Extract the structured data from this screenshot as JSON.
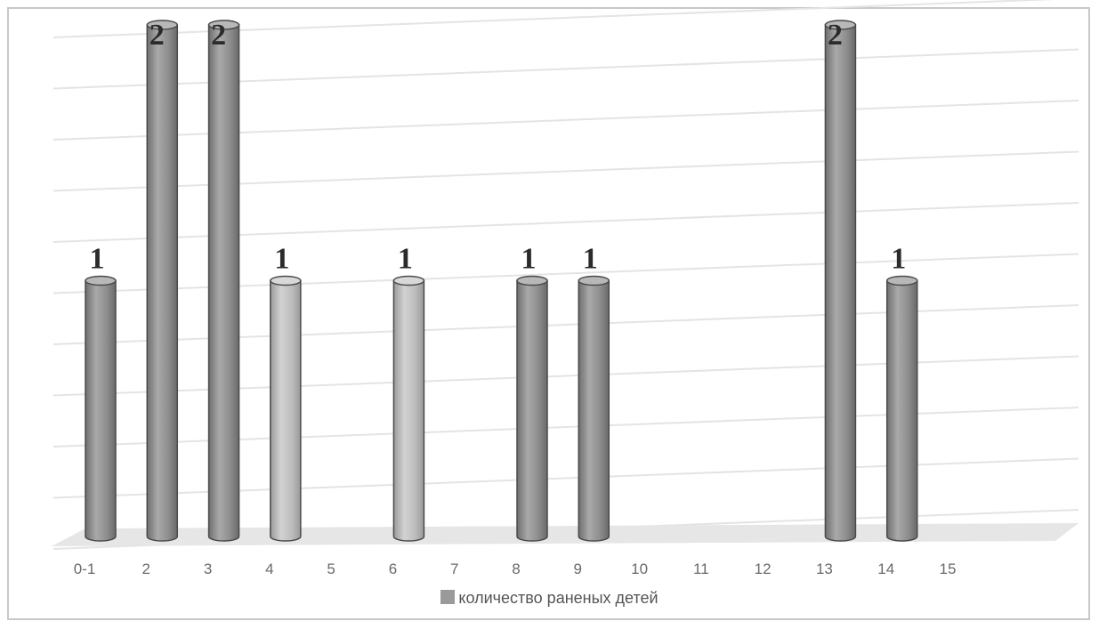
{
  "chart_data": {
    "type": "bar",
    "style": "3d-cylinder",
    "categories": [
      "0-1",
      "2",
      "3",
      "4",
      "5",
      "6",
      "7",
      "8",
      "9",
      "10",
      "11",
      "12",
      "13",
      "14",
      "15"
    ],
    "series": [
      {
        "name": "количество раненых детей",
        "values": [
          1,
          2,
          2,
          1,
          0,
          1,
          0,
          1,
          1,
          0,
          0,
          0,
          2,
          1,
          0
        ],
        "color": "#9a9a9a"
      }
    ],
    "data_labels": [
      "1",
      "2",
      "2",
      "1",
      "",
      "1",
      "",
      "1",
      "1",
      "",
      "",
      "",
      "2",
      "1",
      ""
    ],
    "ylim": [
      0,
      2
    ],
    "grid": true,
    "legend_position": "bottom"
  },
  "colors": {
    "bar": "#9a9a9a",
    "bar_light": "#c2c2c2",
    "grid": "#e4e4e4",
    "floor": "#e6e6e6"
  }
}
